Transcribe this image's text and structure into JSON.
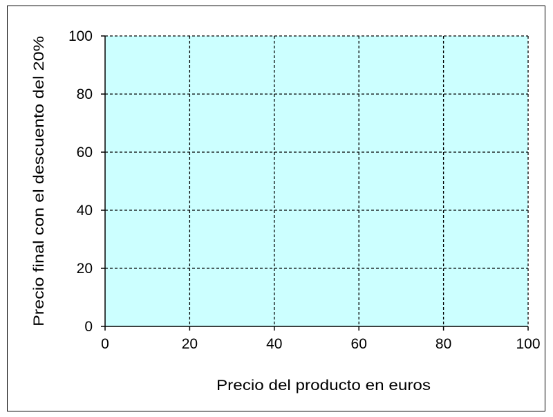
{
  "chart_data": {
    "type": "line",
    "title": "",
    "xlabel": "Precio del producto en euros",
    "ylabel": "Precio final con el  descuento del 20%",
    "xlim": [
      0,
      100
    ],
    "ylim": [
      0,
      100
    ],
    "x_ticks": [
      0,
      20,
      40,
      60,
      80,
      100
    ],
    "y_ticks": [
      0,
      20,
      40,
      60,
      80,
      100
    ],
    "grid": true,
    "grid_style": "dashed",
    "series": [],
    "colors": {
      "plot_background": "#ccffff",
      "grid": "#000000",
      "axis": "#000000",
      "frame": "#000000"
    }
  }
}
